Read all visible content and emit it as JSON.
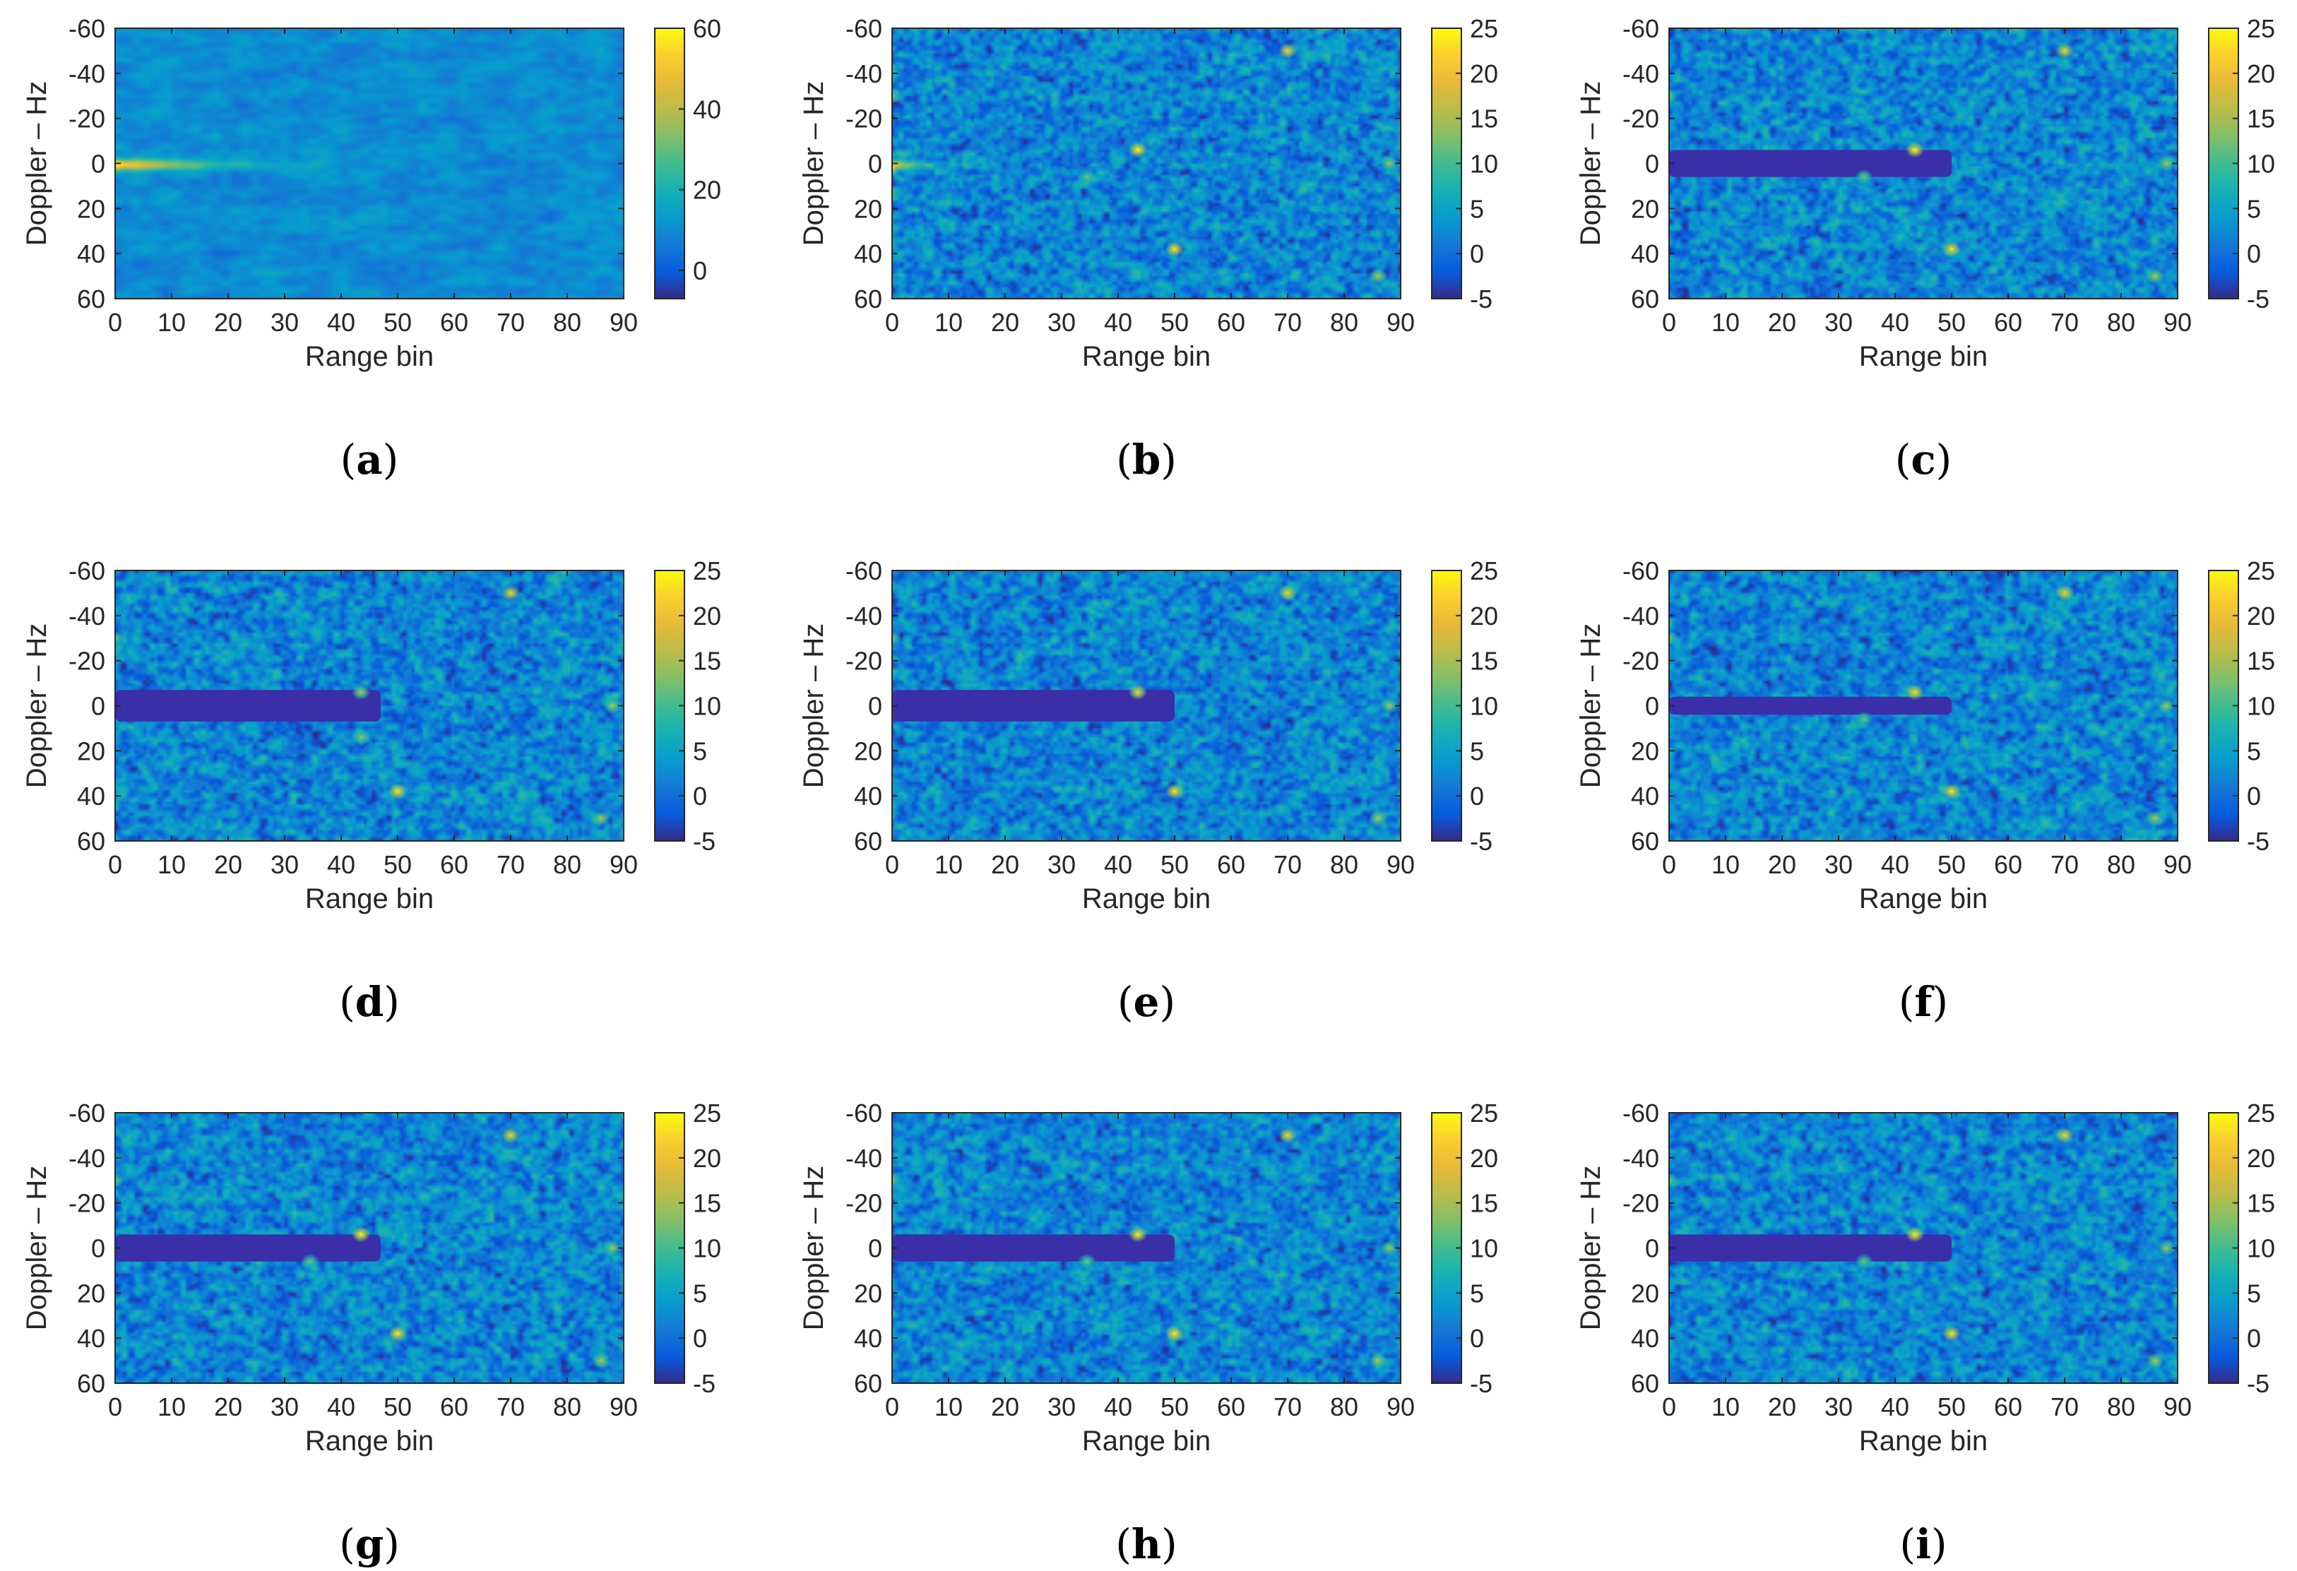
{
  "figure": {
    "colormap": "parula",
    "colors": {
      "axis": "#262626",
      "panel_label": "#000000",
      "notch": "#3a2fa8"
    }
  },
  "chart_data": [
    {
      "id": "a",
      "panel_label": "a",
      "type": "heatmap",
      "xlabel": "Range bin",
      "ylabel": "Doppler – Hz",
      "xlim": [
        0,
        90
      ],
      "ylim": [
        -60,
        60
      ],
      "y_reversed": true,
      "xticks": [
        0,
        10,
        20,
        30,
        40,
        50,
        60,
        70,
        80,
        90
      ],
      "xtick_labels": [
        "0",
        "10",
        "20",
        "30",
        "40",
        "50",
        "60",
        "70",
        "80",
        "90"
      ],
      "yticks": [
        -60,
        -40,
        -20,
        0,
        20,
        40,
        60
      ],
      "ytick_labels": [
        "-60",
        "-40",
        "-20",
        "0",
        "20",
        "40",
        "60"
      ],
      "colorbar": {
        "min": -7,
        "max": 60,
        "ticks": [
          0,
          20,
          40,
          60
        ],
        "tick_labels": [
          "0",
          "20",
          "40",
          "60"
        ]
      },
      "background_level": 10,
      "clutter_ridge": {
        "doppler": 0,
        "range_start": 0,
        "range_end": 45,
        "peak": 58
      },
      "clutter_notch": null,
      "targets": []
    },
    {
      "id": "b",
      "panel_label": "b",
      "type": "heatmap",
      "xlabel": "Range bin",
      "ylabel": "Doppler – Hz",
      "xlim": [
        0,
        90
      ],
      "ylim": [
        -60,
        60
      ],
      "y_reversed": true,
      "xticks": [
        0,
        10,
        20,
        30,
        40,
        50,
        60,
        70,
        80,
        90
      ],
      "xtick_labels": [
        "0",
        "10",
        "20",
        "30",
        "40",
        "50",
        "60",
        "70",
        "80",
        "90"
      ],
      "yticks": [
        -60,
        -40,
        -20,
        0,
        20,
        40,
        60
      ],
      "ytick_labels": [
        "-60",
        "-40",
        "-20",
        "0",
        "20",
        "40",
        "60"
      ],
      "colorbar": {
        "min": -5,
        "max": 25,
        "ticks": [
          -5,
          0,
          5,
          10,
          15,
          20,
          25
        ],
        "tick_labels": [
          "-5",
          "0",
          "5",
          "10",
          "15",
          "20",
          "25"
        ]
      },
      "background_level": 2,
      "clutter_ridge": {
        "doppler": 0,
        "range_start": 0,
        "range_end": 12,
        "peak": 20
      },
      "clutter_notch": null,
      "targets": [
        {
          "range": 70,
          "doppler": -50,
          "value": 22
        },
        {
          "range": 0,
          "doppler": -30,
          "value": 14
        },
        {
          "range": 43.5,
          "doppler": -6,
          "value": 25
        },
        {
          "range": 34.5,
          "doppler": 6,
          "value": 13
        },
        {
          "range": 88,
          "doppler": 0,
          "value": 16
        },
        {
          "range": 50,
          "doppler": 38,
          "value": 24
        },
        {
          "range": 86,
          "doppler": 50,
          "value": 17
        }
      ]
    },
    {
      "id": "c",
      "panel_label": "c",
      "type": "heatmap",
      "xlabel": "Range bin",
      "ylabel": "Doppler – Hz",
      "xlim": [
        0,
        90
      ],
      "ylim": [
        -60,
        60
      ],
      "y_reversed": true,
      "xticks": [
        0,
        10,
        20,
        30,
        40,
        50,
        60,
        70,
        80,
        90
      ],
      "xtick_labels": [
        "0",
        "10",
        "20",
        "30",
        "40",
        "50",
        "60",
        "70",
        "80",
        "90"
      ],
      "yticks": [
        -60,
        -40,
        -20,
        0,
        20,
        40,
        60
      ],
      "ytick_labels": [
        "-60",
        "-40",
        "-20",
        "0",
        "20",
        "40",
        "60"
      ],
      "colorbar": {
        "min": -5,
        "max": 25,
        "ticks": [
          -5,
          0,
          5,
          10,
          15,
          20,
          25
        ],
        "tick_labels": [
          "-5",
          "0",
          "5",
          "10",
          "15",
          "20",
          "25"
        ]
      },
      "background_level": 2,
      "clutter_ridge": null,
      "clutter_notch": {
        "doppler": 0,
        "range_start": 0,
        "range_end": 50,
        "half_width": 6
      },
      "targets": [
        {
          "range": 70,
          "doppler": -50,
          "value": 22
        },
        {
          "range": 0,
          "doppler": -30,
          "value": 14
        },
        {
          "range": 43.5,
          "doppler": -6,
          "value": 25
        },
        {
          "range": 34.5,
          "doppler": 6,
          "value": 13
        },
        {
          "range": 88,
          "doppler": 0,
          "value": 16
        },
        {
          "range": 50,
          "doppler": 38,
          "value": 24
        },
        {
          "range": 86,
          "doppler": 50,
          "value": 17
        }
      ]
    },
    {
      "id": "d",
      "panel_label": "d",
      "type": "heatmap",
      "xlabel": "Range bin",
      "ylabel": "Doppler – Hz",
      "xlim": [
        0,
        90
      ],
      "ylim": [
        -60,
        60
      ],
      "y_reversed": true,
      "xticks": [
        0,
        10,
        20,
        30,
        40,
        50,
        60,
        70,
        80,
        90
      ],
      "xtick_labels": [
        "0",
        "10",
        "20",
        "30",
        "40",
        "50",
        "60",
        "70",
        "80",
        "90"
      ],
      "yticks": [
        -60,
        -40,
        -20,
        0,
        20,
        40,
        60
      ],
      "ytick_labels": [
        "-60",
        "-40",
        "-20",
        "0",
        "20",
        "40",
        "60"
      ],
      "colorbar": {
        "min": -5,
        "max": 25,
        "ticks": [
          -5,
          0,
          5,
          10,
          15,
          20,
          25
        ],
        "tick_labels": [
          "-5",
          "0",
          "5",
          "10",
          "15",
          "20",
          "25"
        ]
      },
      "background_level": 2,
      "clutter_ridge": null,
      "clutter_notch": {
        "doppler": 0,
        "range_start": 0,
        "range_end": 47,
        "half_width": 7
      },
      "targets": [
        {
          "range": 70,
          "doppler": -50,
          "value": 22
        },
        {
          "range": 0,
          "doppler": -30,
          "value": 14
        },
        {
          "range": 43.5,
          "doppler": -6,
          "value": 17
        },
        {
          "range": 43.5,
          "doppler": 14,
          "value": 15
        },
        {
          "range": 88,
          "doppler": 0,
          "value": 16
        },
        {
          "range": 50,
          "doppler": 38,
          "value": 24
        },
        {
          "range": 86,
          "doppler": 50,
          "value": 17
        }
      ]
    },
    {
      "id": "e",
      "panel_label": "e",
      "type": "heatmap",
      "xlabel": "Range bin",
      "ylabel": "Doppler – Hz",
      "xlim": [
        0,
        90
      ],
      "ylim": [
        -60,
        60
      ],
      "y_reversed": true,
      "xticks": [
        0,
        10,
        20,
        30,
        40,
        50,
        60,
        70,
        80,
        90
      ],
      "xtick_labels": [
        "0",
        "10",
        "20",
        "30",
        "40",
        "50",
        "60",
        "70",
        "80",
        "90"
      ],
      "yticks": [
        -60,
        -40,
        -20,
        0,
        20,
        40,
        60
      ],
      "ytick_labels": [
        "-60",
        "-40",
        "-20",
        "0",
        "20",
        "40",
        "60"
      ],
      "colorbar": {
        "min": -5,
        "max": 25,
        "ticks": [
          -5,
          0,
          5,
          10,
          15,
          20,
          25
        ],
        "tick_labels": [
          "-5",
          "0",
          "5",
          "10",
          "15",
          "20",
          "25"
        ]
      },
      "background_level": 2,
      "clutter_ridge": null,
      "clutter_notch": {
        "doppler": 0,
        "range_start": 0,
        "range_end": 50,
        "half_width": 7
      },
      "targets": [
        {
          "range": 70,
          "doppler": -50,
          "value": 22
        },
        {
          "range": 0,
          "doppler": -30,
          "value": 14
        },
        {
          "range": 43.5,
          "doppler": -6,
          "value": 22
        },
        {
          "range": 88,
          "doppler": 0,
          "value": 16
        },
        {
          "range": 50,
          "doppler": 38,
          "value": 24
        },
        {
          "range": 86,
          "doppler": 50,
          "value": 17
        }
      ]
    },
    {
      "id": "f",
      "panel_label": "f",
      "type": "heatmap",
      "xlabel": "Range bin",
      "ylabel": "Doppler – Hz",
      "xlim": [
        0,
        90
      ],
      "ylim": [
        -60,
        60
      ],
      "y_reversed": true,
      "xticks": [
        0,
        10,
        20,
        30,
        40,
        50,
        60,
        70,
        80,
        90
      ],
      "xtick_labels": [
        "0",
        "10",
        "20",
        "30",
        "40",
        "50",
        "60",
        "70",
        "80",
        "90"
      ],
      "yticks": [
        -60,
        -40,
        -20,
        0,
        20,
        40,
        60
      ],
      "ytick_labels": [
        "-60",
        "-40",
        "-20",
        "0",
        "20",
        "40",
        "60"
      ],
      "colorbar": {
        "min": -5,
        "max": 25,
        "ticks": [
          -5,
          0,
          5,
          10,
          15,
          20,
          25
        ],
        "tick_labels": [
          "-5",
          "0",
          "5",
          "10",
          "15",
          "20",
          "25"
        ]
      },
      "background_level": 2,
      "clutter_ridge": null,
      "clutter_notch": {
        "doppler": 0,
        "range_start": 0,
        "range_end": 50,
        "half_width": 4
      },
      "targets": [
        {
          "range": 70,
          "doppler": -50,
          "value": 22
        },
        {
          "range": 0,
          "doppler": -30,
          "value": 14
        },
        {
          "range": 43.5,
          "doppler": -6,
          "value": 23
        },
        {
          "range": 34.5,
          "doppler": 6,
          "value": 13
        },
        {
          "range": 88,
          "doppler": 0,
          "value": 16
        },
        {
          "range": 50,
          "doppler": 38,
          "value": 24
        },
        {
          "range": 86,
          "doppler": 50,
          "value": 17
        }
      ]
    },
    {
      "id": "g",
      "panel_label": "g",
      "type": "heatmap",
      "xlabel": "Range bin",
      "ylabel": "Doppler – Hz",
      "xlim": [
        0,
        90
      ],
      "ylim": [
        -60,
        60
      ],
      "y_reversed": true,
      "xticks": [
        0,
        10,
        20,
        30,
        40,
        50,
        60,
        70,
        80,
        90
      ],
      "xtick_labels": [
        "0",
        "10",
        "20",
        "30",
        "40",
        "50",
        "60",
        "70",
        "80",
        "90"
      ],
      "yticks": [
        -60,
        -40,
        -20,
        0,
        20,
        40,
        60
      ],
      "ytick_labels": [
        "-60",
        "-40",
        "-20",
        "0",
        "20",
        "40",
        "60"
      ],
      "colorbar": {
        "min": -5,
        "max": 25,
        "ticks": [
          -5,
          0,
          5,
          10,
          15,
          20,
          25
        ],
        "tick_labels": [
          "-5",
          "0",
          "5",
          "10",
          "15",
          "20",
          "25"
        ]
      },
      "background_level": 2,
      "clutter_ridge": null,
      "clutter_notch": {
        "doppler": 0,
        "range_start": 0,
        "range_end": 47,
        "half_width": 6
      },
      "targets": [
        {
          "range": 70,
          "doppler": -50,
          "value": 22
        },
        {
          "range": 0,
          "doppler": -30,
          "value": 14
        },
        {
          "range": 43.5,
          "doppler": -6,
          "value": 25
        },
        {
          "range": 34.5,
          "doppler": 6,
          "value": 13
        },
        {
          "range": 88,
          "doppler": 0,
          "value": 16
        },
        {
          "range": 50,
          "doppler": 38,
          "value": 24
        },
        {
          "range": 86,
          "doppler": 50,
          "value": 17
        }
      ]
    },
    {
      "id": "h",
      "panel_label": "h",
      "type": "heatmap",
      "xlabel": "Range bin",
      "ylabel": "Doppler – Hz",
      "xlim": [
        0,
        90
      ],
      "ylim": [
        -60,
        60
      ],
      "y_reversed": true,
      "xticks": [
        0,
        10,
        20,
        30,
        40,
        50,
        60,
        70,
        80,
        90
      ],
      "xtick_labels": [
        "0",
        "10",
        "20",
        "30",
        "40",
        "50",
        "60",
        "70",
        "80",
        "90"
      ],
      "yticks": [
        -60,
        -40,
        -20,
        0,
        20,
        40,
        60
      ],
      "ytick_labels": [
        "-60",
        "-40",
        "-20",
        "0",
        "20",
        "40",
        "60"
      ],
      "colorbar": {
        "min": -5,
        "max": 25,
        "ticks": [
          -5,
          0,
          5,
          10,
          15,
          20,
          25
        ],
        "tick_labels": [
          "-5",
          "0",
          "5",
          "10",
          "15",
          "20",
          "25"
        ]
      },
      "background_level": 2,
      "clutter_ridge": null,
      "clutter_notch": {
        "doppler": 0,
        "range_start": 0,
        "range_end": 50,
        "half_width": 6
      },
      "targets": [
        {
          "range": 70,
          "doppler": -50,
          "value": 22
        },
        {
          "range": 0,
          "doppler": -30,
          "value": 14
        },
        {
          "range": 43.5,
          "doppler": -6,
          "value": 24
        },
        {
          "range": 34.5,
          "doppler": 6,
          "value": 13
        },
        {
          "range": 88,
          "doppler": 0,
          "value": 16
        },
        {
          "range": 50,
          "doppler": 38,
          "value": 24
        },
        {
          "range": 86,
          "doppler": 50,
          "value": 17
        }
      ]
    },
    {
      "id": "i",
      "panel_label": "i",
      "type": "heatmap",
      "xlabel": "Range bin",
      "ylabel": "Doppler – Hz",
      "xlim": [
        0,
        90
      ],
      "ylim": [
        -60,
        60
      ],
      "y_reversed": true,
      "xticks": [
        0,
        10,
        20,
        30,
        40,
        50,
        60,
        70,
        80,
        90
      ],
      "xtick_labels": [
        "0",
        "10",
        "20",
        "30",
        "40",
        "50",
        "60",
        "70",
        "80",
        "90"
      ],
      "yticks": [
        -60,
        -40,
        -20,
        0,
        20,
        40,
        60
      ],
      "ytick_labels": [
        "-60",
        "-40",
        "-20",
        "0",
        "20",
        "40",
        "60"
      ],
      "colorbar": {
        "min": -5,
        "max": 25,
        "ticks": [
          -5,
          0,
          5,
          10,
          15,
          20,
          25
        ],
        "tick_labels": [
          "-5",
          "0",
          "5",
          "10",
          "15",
          "20",
          "25"
        ]
      },
      "background_level": 2,
      "clutter_ridge": null,
      "clutter_notch": {
        "doppler": 0,
        "range_start": 0,
        "range_end": 50,
        "half_width": 6
      },
      "targets": [
        {
          "range": 70,
          "doppler": -50,
          "value": 22
        },
        {
          "range": 0,
          "doppler": -30,
          "value": 14
        },
        {
          "range": 43.5,
          "doppler": -6,
          "value": 24
        },
        {
          "range": 34.5,
          "doppler": 6,
          "value": 13
        },
        {
          "range": 88,
          "doppler": 0,
          "value": 16
        },
        {
          "range": 50,
          "doppler": 38,
          "value": 24
        },
        {
          "range": 86,
          "doppler": 50,
          "value": 17
        }
      ]
    }
  ]
}
